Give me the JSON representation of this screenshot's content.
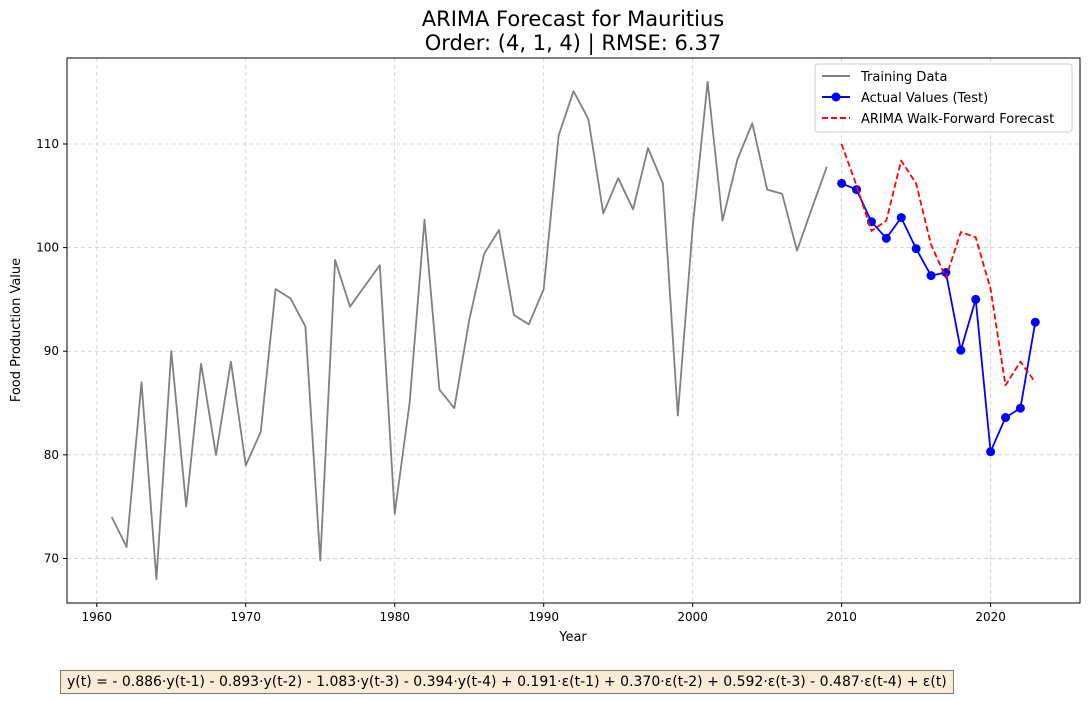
{
  "chart_data": {
    "type": "line",
    "title": "ARIMA Forecast for Mauritius",
    "subtitle": "Order: (4, 1, 4) | RMSE: 6.37",
    "xlabel": "Year",
    "ylabel": "Food Production Value",
    "xlim": [
      1958,
      2026
    ],
    "ylim": [
      65.7,
      118.3
    ],
    "x_ticks": [
      1960,
      1970,
      1980,
      1990,
      2000,
      2010,
      2020
    ],
    "y_ticks": [
      70,
      80,
      90,
      100,
      110
    ],
    "grid": true,
    "legend_position": "top-right",
    "series": [
      {
        "name": "Training Data",
        "color": "#808080",
        "style": "solid",
        "x": [
          1961,
          1962,
          1963,
          1964,
          1965,
          1966,
          1967,
          1968,
          1969,
          1970,
          1971,
          1972,
          1973,
          1974,
          1975,
          1976,
          1977,
          1978,
          1979,
          1980,
          1981,
          1982,
          1983,
          1984,
          1985,
          1986,
          1987,
          1988,
          1989,
          1990,
          1991,
          1992,
          1993,
          1994,
          1995,
          1996,
          1997,
          1998,
          1999,
          2000,
          2001,
          2002,
          2003,
          2004,
          2005,
          2006,
          2007,
          2008,
          2009
        ],
        "y": [
          74.0,
          71.1,
          87.0,
          68.0,
          90.0,
          75.0,
          88.8,
          80.0,
          89.0,
          79.0,
          82.2,
          96.0,
          95.1,
          92.4,
          69.8,
          98.8,
          94.3,
          96.3,
          98.3,
          74.3,
          85.0,
          102.7,
          86.3,
          84.5,
          93.0,
          99.4,
          101.7,
          93.5,
          92.6,
          96.0,
          110.8,
          115.1,
          112.4,
          103.3,
          106.7,
          103.7,
          109.6,
          106.2,
          83.8,
          102.0,
          116.0,
          102.6,
          108.5,
          112.0,
          105.6,
          105.2,
          99.7,
          103.8,
          107.8
        ]
      },
      {
        "name": "Actual Values (Test)",
        "color": "#0000ff",
        "style": "solid-markers",
        "x": [
          2010,
          2011,
          2012,
          2013,
          2014,
          2015,
          2016,
          2017,
          2018,
          2019,
          2020,
          2021,
          2022,
          2023
        ],
        "y": [
          106.2,
          105.6,
          102.5,
          100.9,
          102.9,
          99.9,
          97.3,
          97.6,
          90.1,
          95.0,
          80.3,
          83.6,
          84.5,
          92.8
        ]
      },
      {
        "name": "ARIMA Walk-Forward Forecast",
        "color": "#ff0000",
        "style": "dashed",
        "x": [
          2010,
          2011,
          2012,
          2013,
          2014,
          2015,
          2016,
          2017,
          2018,
          2019,
          2020,
          2021,
          2022,
          2023
        ],
        "y": [
          110.0,
          106.0,
          101.6,
          102.6,
          108.4,
          106.2,
          100.3,
          97.1,
          101.5,
          101.0,
          96.0,
          86.7,
          89.0,
          87.0
        ]
      }
    ]
  },
  "equation": "y(t) = - 0.886·y(t-1) - 0.893·y(t-2) - 1.083·y(t-3) - 0.394·y(t-4) + 0.191·ε(t-1) + 0.370·ε(t-2) + 0.592·ε(t-3) - 0.487·ε(t-4) + ε(t)"
}
